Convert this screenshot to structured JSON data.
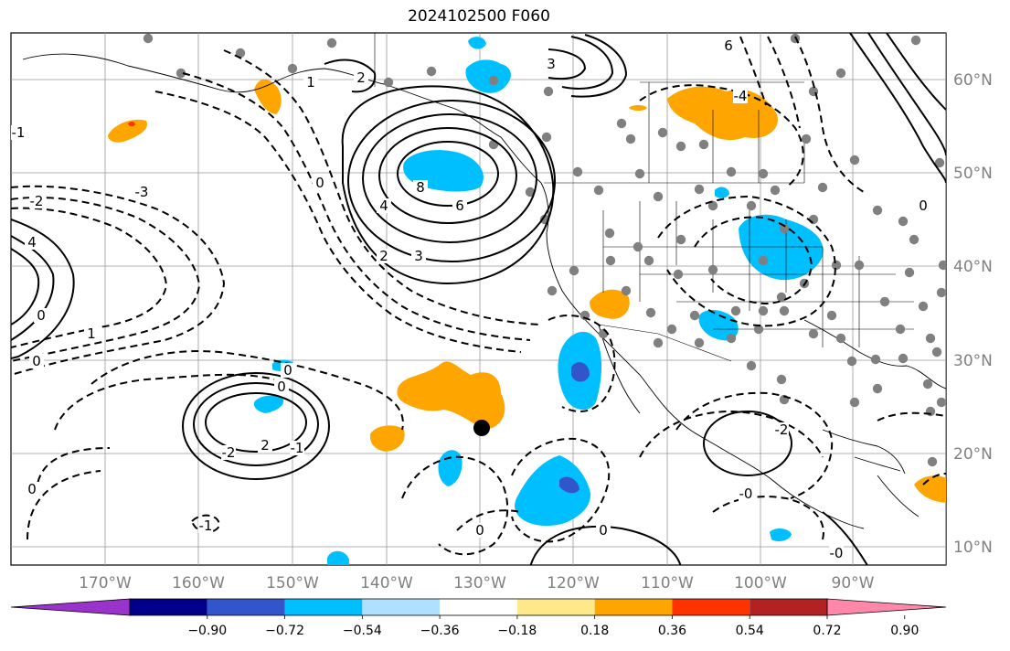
{
  "title": "2024102500 F060",
  "map": {
    "lat_labels": [
      "60°N",
      "50°N",
      "40°N",
      "30°N",
      "20°N",
      "10°N"
    ],
    "lon_labels": [
      "170°W",
      "160°W",
      "150°W",
      "140°W",
      "130°W",
      "120°W",
      "110°W",
      "100°W",
      "90°W"
    ],
    "contour_labels": [
      "6",
      "3",
      "2",
      "1",
      "0",
      "-1",
      "-2",
      "-3",
      "-4",
      "4",
      "8",
      "6",
      "4",
      "3",
      "2",
      "0",
      "1",
      "0",
      "-2",
      "2",
      "-1",
      "0",
      "0",
      "-2",
      "-0",
      "-1",
      "0",
      "0",
      "-0",
      "0",
      "0"
    ]
  },
  "colorbar": {
    "colors": [
      "#9933cc",
      "#00008b",
      "#3355cc",
      "#00bfff",
      "#b0e0ff",
      "#ffffff",
      "#ffe88a",
      "#ffa500",
      "#ff3300",
      "#b22222",
      "#ff88aa"
    ],
    "tick_labels": [
      "−0.90",
      "−0.72",
      "−0.54",
      "−0.36",
      "−0.18",
      "0.18",
      "0.36",
      "0.54",
      "0.72",
      "0.90"
    ]
  }
}
